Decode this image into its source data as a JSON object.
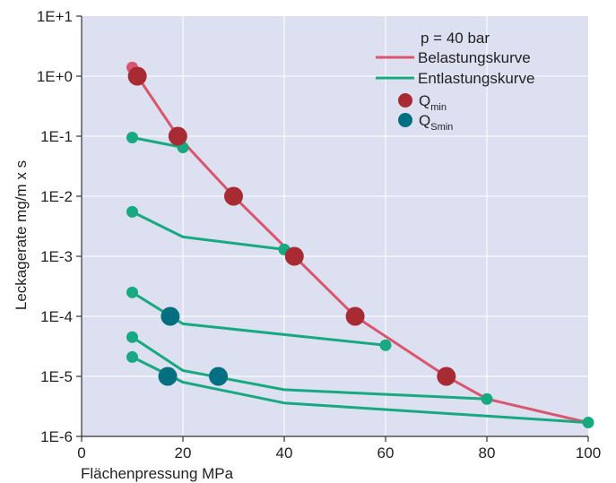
{
  "chart_data": {
    "type": "line",
    "xlabel": "Flächenpressung  MPa",
    "ylabel": "Leckagerate  mg/m x s",
    "xlim": [
      0,
      100
    ],
    "ylim": [
      1e-06,
      10
    ],
    "yscale": "log",
    "xticks": [
      "0",
      "20",
      "40",
      "60",
      "80",
      "100"
    ],
    "yticks": [
      "1E+1",
      "1E+0",
      "1E-1",
      "1E-2",
      "1E-3",
      "1E-4",
      "1E-5",
      "1E-6"
    ],
    "grid": true,
    "legend_position": "top-right",
    "legend": {
      "title": "p = 40 bar",
      "belastung": "Belastungskurve",
      "entlastung": "Entlastungskurve",
      "qmin_main": "Q",
      "qmin_sub": "min",
      "qsmin_main": "Q",
      "qsmin_sub": "Smin"
    },
    "colors": {
      "plot_bg": "#dde0f0",
      "grid": "#ffffff",
      "belastung": "#d9566e",
      "entlastung": "#17a97f",
      "qmin": "#a82a33",
      "qsmin": "#046f80"
    },
    "series": [
      {
        "name": "Belastungskurve",
        "kind": "belastung",
        "x": [
          10,
          11,
          19,
          30,
          42,
          54,
          72,
          80,
          100
        ],
        "y": [
          1.4,
          1.0,
          0.1,
          0.01,
          0.001,
          0.0001,
          1e-05,
          4.2e-06,
          1.7e-06
        ]
      },
      {
        "kind": "entlastung",
        "x": [
          10,
          20
        ],
        "y": [
          0.095,
          0.065
        ]
      },
      {
        "kind": "entlastung",
        "x": [
          10,
          20,
          40
        ],
        "y": [
          0.0055,
          0.0021,
          0.0013
        ]
      },
      {
        "kind": "entlastung",
        "x": [
          10,
          20,
          60
        ],
        "y": [
          0.00025,
          7.5e-05,
          3.3e-05
        ]
      },
      {
        "kind": "entlastung",
        "x": [
          10,
          20,
          40,
          80
        ],
        "y": [
          4.5e-05,
          1.25e-05,
          6e-06,
          4.2e-06
        ]
      },
      {
        "kind": "entlastung",
        "x": [
          10,
          20,
          40,
          100
        ],
        "y": [
          2.1e-05,
          8e-06,
          3.6e-06,
          1.7e-06
        ]
      }
    ],
    "small_points": [
      {
        "x": 10,
        "y": 1.4,
        "kind": "belastung"
      },
      {
        "x": 10,
        "y": 0.095,
        "kind": "entlastung"
      },
      {
        "x": 20,
        "y": 0.065,
        "kind": "entlastung"
      },
      {
        "x": 10,
        "y": 0.0055,
        "kind": "entlastung"
      },
      {
        "x": 40,
        "y": 0.0013,
        "kind": "entlastung"
      },
      {
        "x": 10,
        "y": 0.00025,
        "kind": "entlastung"
      },
      {
        "x": 60,
        "y": 3.3e-05,
        "kind": "entlastung"
      },
      {
        "x": 10,
        "y": 4.5e-05,
        "kind": "entlastung"
      },
      {
        "x": 10,
        "y": 2.1e-05,
        "kind": "entlastung"
      },
      {
        "x": 80,
        "y": 4.2e-06,
        "kind": "entlastung"
      },
      {
        "x": 100,
        "y": 1.7e-06,
        "kind": "entlastung"
      }
    ],
    "qmin_points": [
      {
        "x": 11,
        "y": 1.0
      },
      {
        "x": 19,
        "y": 0.1
      },
      {
        "x": 30,
        "y": 0.01
      },
      {
        "x": 42,
        "y": 0.001
      },
      {
        "x": 54,
        "y": 0.0001
      },
      {
        "x": 72,
        "y": 1e-05
      }
    ],
    "qsmin_points": [
      {
        "x": 17.5,
        "y": 0.0001
      },
      {
        "x": 17,
        "y": 1e-05
      },
      {
        "x": 27,
        "y": 1e-05
      }
    ]
  }
}
